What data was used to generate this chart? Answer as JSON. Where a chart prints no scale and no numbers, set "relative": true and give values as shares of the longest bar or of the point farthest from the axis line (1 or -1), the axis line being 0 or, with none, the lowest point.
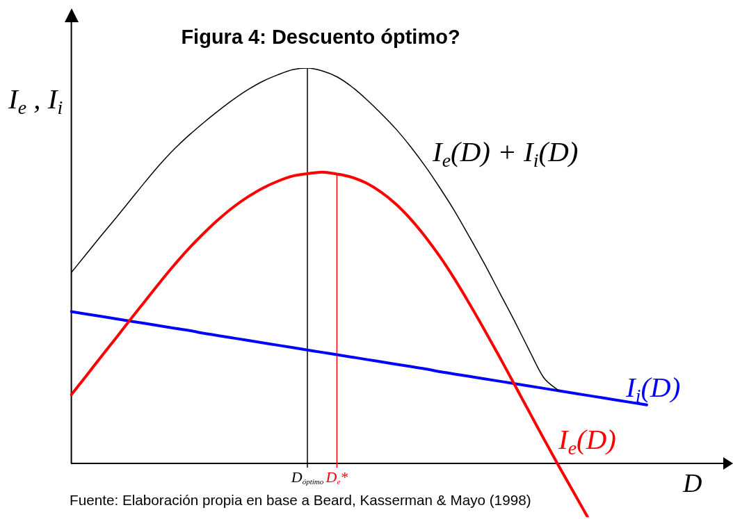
{
  "chart_data": {
    "type": "line",
    "title": "Figura 4: Descuento óptimo?",
    "xlabel": "D",
    "ylabel": "I$_{e}$ , I$_{i}$",
    "annotations": [
      "Fuente: Elaboración propia en base a Beard, Kasserman & Mayo (1998)"
    ],
    "relative": true,
    "marker": "none",
    "categories": [
      null,
      null,
      null,
      null,
      null,
      null,
      null,
      null,
      null,
      null,
      null,
      null,
      null,
      null,
      null,
      null,
      "D$_{óptimo}$",
      null,
      "D$_{e}$*",
      null,
      null,
      null,
      null,
      null,
      null,
      null,
      null,
      null,
      null,
      null,
      null,
      null,
      null,
      null,
      null,
      null,
      null,
      null,
      null,
      null,
      null,
      null,
      null,
      null,
      null
    ],
    "series": [
      {
        "name": "I$_{e}$(D) + I$_{i}$(D)",
        "color": "#000000",
        "values": [
          0.483,
          0.529,
          0.575,
          0.62,
          0.666,
          0.712,
          0.756,
          0.796,
          0.831,
          0.863,
          0.893,
          0.921,
          0.946,
          0.967,
          0.983,
          0.996,
          1,
          0.993,
          0.978,
          0.953,
          0.921,
          0.885,
          0.846,
          0.801,
          0.751,
          0.696,
          0.637,
          0.572,
          0.505,
          0.434,
          0.363,
          0.289,
          0.218,
          0.185,
          null,
          null,
          null,
          null,
          null,
          null,
          null,
          null,
          null,
          null,
          null
        ]
      },
      {
        "name": "I$_{e}$(D)",
        "color": "#ff0000",
        "values": [
          0.174,
          0.221,
          0.269,
          0.316,
          0.364,
          0.411,
          0.458,
          0.503,
          0.545,
          0.583,
          0.618,
          0.649,
          0.675,
          0.697,
          0.714,
          0.727,
          0.733,
          0.737,
          0.732,
          0.724,
          0.709,
          0.686,
          0.656,
          0.618,
          0.573,
          0.522,
          0.465,
          0.403,
          0.338,
          0.271,
          0.202,
          0.133,
          0.064,
          -0.004,
          -0.07,
          -0.136,
          null,
          null,
          null,
          null,
          null,
          null,
          null,
          null,
          null
        ]
      },
      {
        "name": "I$_{i}$(D)",
        "color": "#0000ff",
        "values": [
          0.384,
          0.378,
          0.372,
          0.366,
          0.36,
          0.354,
          0.348,
          0.342,
          0.336,
          0.329,
          0.323,
          0.317,
          0.311,
          0.305,
          0.299,
          0.293,
          0.287,
          0.281,
          0.275,
          0.269,
          0.263,
          0.257,
          0.251,
          0.245,
          0.239,
          0.232,
          0.226,
          0.22,
          0.214,
          0.208,
          0.202,
          0.196,
          0.19,
          0.184,
          0.178,
          0.172,
          0.166,
          0.16,
          0.154,
          0.148,
          null,
          null,
          null,
          null,
          null
        ]
      }
    ],
    "ref_lines": [
      {
        "axis": "x",
        "value": "D$_{óptimo}$",
        "color": "#000000"
      },
      {
        "axis": "x",
        "value": "D$_{e}$*",
        "color": "#ff0000"
      }
    ]
  }
}
